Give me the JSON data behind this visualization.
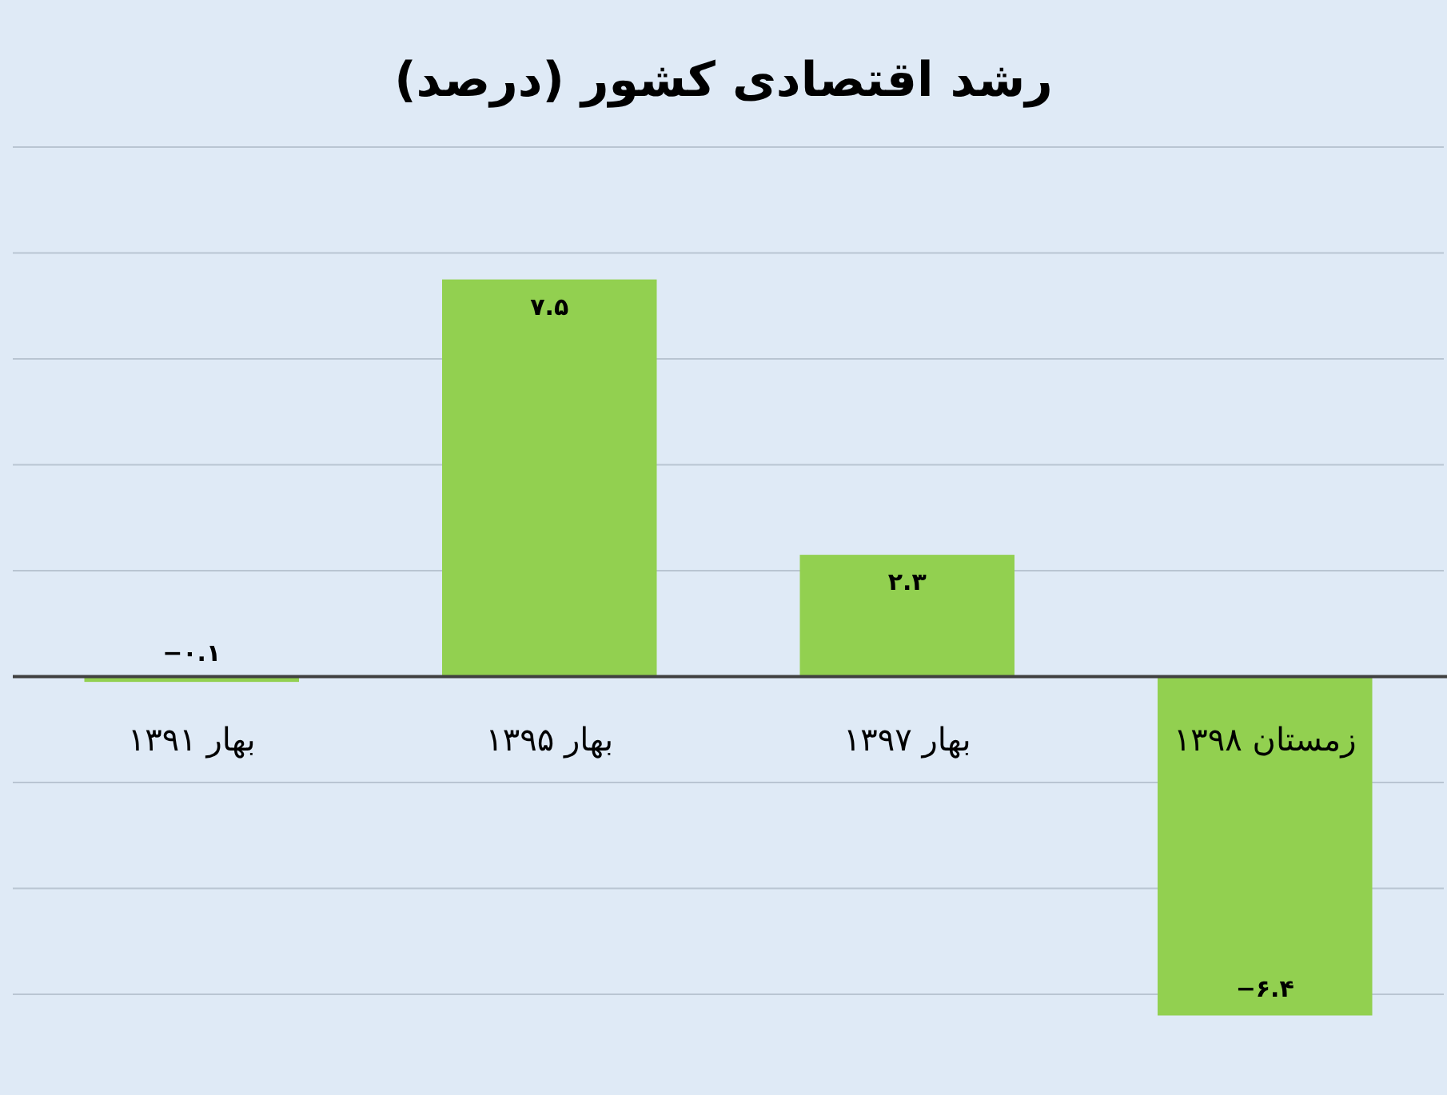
{
  "chart_data": {
    "type": "bar",
    "title": "رشد اقتصادی کشور (درصد)",
    "categories": [
      "بهار ۱۳۹۱",
      "بهار ۱۳۹۵",
      "بهار ۱۳۹۷",
      "زمستان ۱۳۹۸"
    ],
    "values": [
      -0.1,
      7.5,
      2.3,
      -6.4
    ],
    "value_labels": [
      "−۰.۱",
      "۷.۵",
      "۲.۳",
      "−۶.۴"
    ],
    "color": "#92d050",
    "yticks": [
      {
        "value": -6,
        "label": null
      },
      {
        "value": -4,
        "label": null
      },
      {
        "value": -2,
        "label": null
      },
      {
        "value": 0,
        "label": null
      },
      {
        "value": 2,
        "label": null
      },
      {
        "value": 4,
        "label": null
      },
      {
        "value": 6,
        "label": null
      },
      {
        "value": 8,
        "label": null
      },
      {
        "value": 10,
        "label": null
      }
    ],
    "grid": "y",
    "tick_labels": "x"
  }
}
